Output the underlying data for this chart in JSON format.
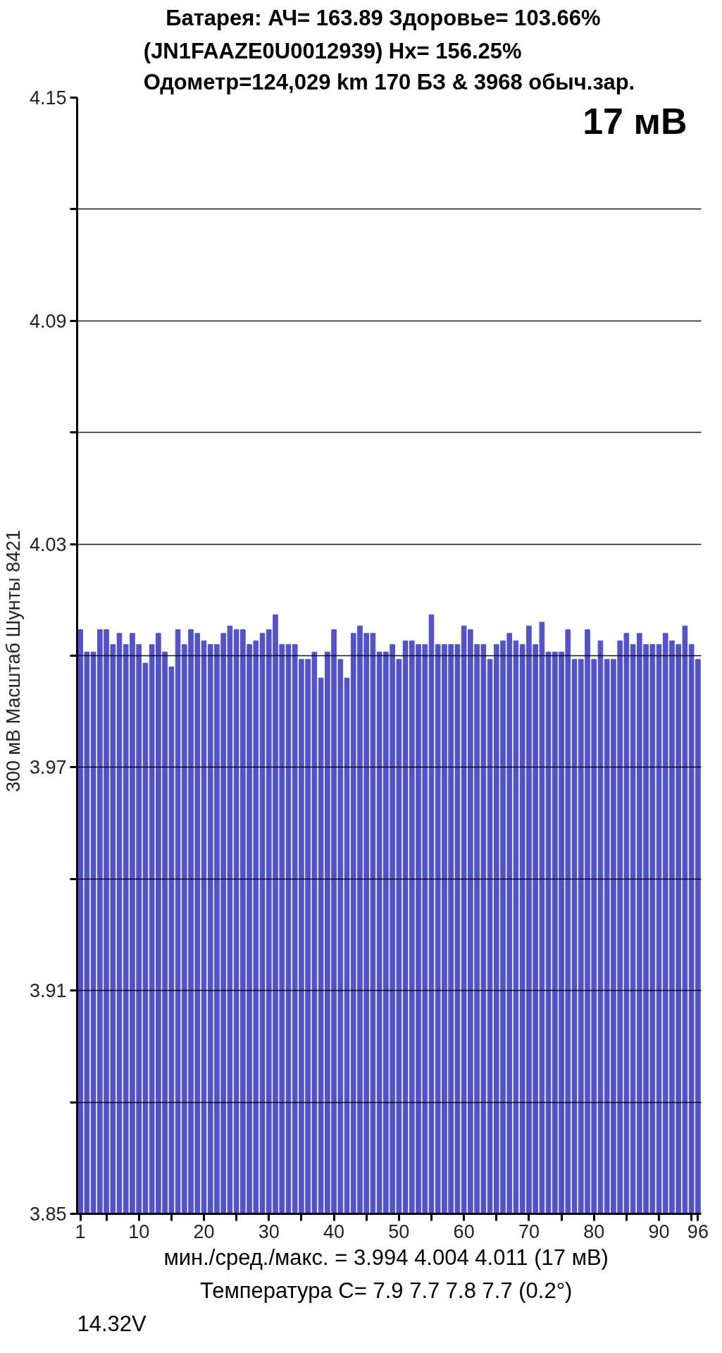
{
  "chart_data": {
    "type": "bar",
    "title": "Батарея:  АЧ= 163.89  Здоровье= 103.66%",
    "subtitle": "(JN1FAAZE0U0012939)   Hx= 156.25%\nОдометр=124,029 km 170 БЗ & 3968 обыч.зар.",
    "ylabel": "300 мВ Масштаб   Шунты 8421",
    "annotations": [
      "17 мВ",
      "мин./сред./макс. = 3.994 4.004 4.011  (17 мВ)",
      "Температура C= 7.9 7.7 7.8 7.7  (0.2°)",
      "14.32V"
    ],
    "x": [
      1,
      2,
      3,
      4,
      5,
      6,
      7,
      8,
      9,
      10,
      11,
      12,
      13,
      14,
      15,
      16,
      17,
      18,
      19,
      20,
      21,
      22,
      23,
      24,
      25,
      26,
      27,
      28,
      29,
      30,
      31,
      32,
      33,
      34,
      35,
      36,
      37,
      38,
      39,
      40,
      41,
      42,
      43,
      44,
      45,
      46,
      47,
      48,
      49,
      50,
      51,
      52,
      53,
      54,
      55,
      56,
      57,
      58,
      59,
      60,
      61,
      62,
      63,
      64,
      65,
      66,
      67,
      68,
      69,
      70,
      71,
      72,
      73,
      74,
      75,
      76,
      77,
      78,
      79,
      80,
      81,
      82,
      83,
      84,
      85,
      86,
      87,
      88,
      89,
      90,
      91,
      92,
      93,
      94,
      95,
      96
    ],
    "values": [
      4.007,
      4.001,
      4.001,
      4.007,
      4.007,
      4.003,
      4.006,
      4.003,
      4.006,
      4.003,
      3.998,
      4.003,
      4.006,
      4.001,
      3.997,
      4.007,
      4.003,
      4.007,
      4.006,
      4.004,
      4.003,
      4.003,
      4.006,
      4.008,
      4.007,
      4.007,
      4.003,
      4.004,
      4.006,
      4.007,
      4.011,
      4.003,
      4.003,
      4.003,
      3.999,
      3.999,
      4.001,
      3.994,
      4.001,
      4.007,
      3.999,
      3.994,
      4.006,
      4.008,
      4.006,
      4.006,
      4.001,
      4.001,
      4.003,
      3.999,
      4.004,
      4.004,
      4.003,
      4.003,
      4.011,
      4.003,
      4.003,
      4.003,
      4.003,
      4.008,
      4.007,
      4.003,
      4.003,
      3.999,
      4.003,
      4.004,
      4.006,
      4.004,
      4.003,
      4.008,
      4.003,
      4.009,
      4.001,
      4.001,
      4.001,
      4.007,
      3.999,
      3.999,
      4.007,
      3.999,
      4.004,
      3.999,
      3.999,
      4.004,
      4.006,
      4.003,
      4.006,
      4.003,
      4.003,
      4.003,
      4.006,
      4.004,
      4.003,
      4.008,
      4.003,
      3.999
    ],
    "color": "#5252c9",
    "xlim": [
      0.5,
      96.5
    ],
    "xticks": [
      1,
      {
        "value": 5,
        "label": null
      },
      10,
      {
        "value": 15,
        "label": null
      },
      20,
      {
        "value": 25,
        "label": null
      },
      30,
      {
        "value": 35,
        "label": null
      },
      40,
      {
        "value": 45,
        "label": null
      },
      50,
      {
        "value": 55,
        "label": null
      },
      60,
      {
        "value": 65,
        "label": null
      },
      70,
      {
        "value": 75,
        "label": null
      },
      80,
      {
        "value": 85,
        "label": null
      },
      90,
      {
        "value": 95,
        "label": null
      },
      96
    ],
    "ylim": [
      3.85,
      4.15
    ],
    "yticks": [
      3.85,
      {
        "value": 3.88,
        "label": null
      },
      3.91,
      {
        "value": 3.94,
        "label": null
      },
      3.97,
      {
        "value": 4.0,
        "label": null
      },
      4.03,
      {
        "value": 4.06,
        "label": null
      },
      4.09,
      {
        "value": 4.12,
        "label": null
      },
      4.15
    ],
    "grid": "y"
  }
}
